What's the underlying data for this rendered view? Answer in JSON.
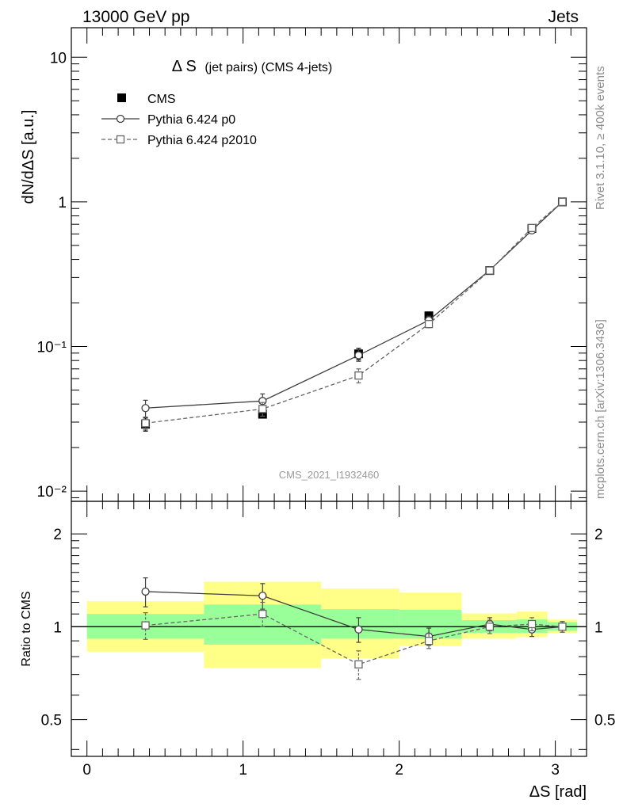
{
  "header": {
    "left": "13000 GeV pp",
    "right": "Jets"
  },
  "side_notes": {
    "rivet": "Rivet 3.1.10, ≥ 400k events",
    "site": "mcplots.cern.ch [arXiv:1306.3436]"
  },
  "watermark": "CMS_2021_I1932460",
  "colors": {
    "data": "#000000",
    "p0": "#3f3f3f",
    "p2010": "#666666",
    "band_outer": "#ffff88",
    "band_inner": "#99ff99"
  },
  "chart_data": [
    {
      "type": "scatter",
      "panel": "main",
      "title_main": "Δ S",
      "title_sub": "(jet pairs) (CMS 4-jets)",
      "xlabel": "ΔS [rad]",
      "ylabel": "dN/dΔS [a.u.]",
      "xlim": [
        -0.1,
        3.2
      ],
      "ylim": [
        0.0085,
        16
      ],
      "yscale": "log",
      "yticks": [
        {
          "value": 0.01,
          "label": "10⁻²"
        },
        {
          "value": 0.1,
          "label": "10⁻¹"
        },
        {
          "value": 1,
          "label": "1"
        },
        {
          "value": 10,
          "label": "10"
        }
      ],
      "legend_position": "top-left",
      "series": [
        {
          "name": "CMS",
          "key": "data",
          "marker": "filled-square",
          "x": [
            0.375,
            1.125,
            1.74,
            2.19,
            2.58,
            2.85,
            3.045
          ],
          "y": [
            0.029,
            0.034,
            0.089,
            0.163,
            0.335,
            0.655,
            1.0
          ],
          "err": [
            0.003,
            0.002,
            0.008,
            0.01,
            0.01,
            0.02,
            0.01
          ]
        },
        {
          "name": "Pythia 6.424 p0",
          "key": "p0",
          "marker": "open-circle",
          "line": "solid",
          "x": [
            0.375,
            1.125,
            1.74,
            2.19,
            2.58,
            2.85,
            3.045
          ],
          "y": [
            0.0375,
            0.042,
            0.087,
            0.152,
            0.337,
            0.635,
            1.0
          ],
          "err": [
            0.005,
            0.005,
            0.008,
            0.01,
            0.012,
            0.02,
            0.01
          ]
        },
        {
          "name": "Pythia 6.424 p2010",
          "key": "p2010",
          "marker": "open-square",
          "line": "dashed",
          "x": [
            0.375,
            1.125,
            1.74,
            2.19,
            2.58,
            2.85,
            3.045
          ],
          "y": [
            0.0295,
            0.037,
            0.063,
            0.143,
            0.335,
            0.66,
            1.0
          ],
          "err": [
            0.003,
            0.004,
            0.007,
            0.008,
            0.012,
            0.025,
            0.01
          ]
        }
      ]
    },
    {
      "type": "scatter",
      "panel": "ratio",
      "xlabel": "ΔS [rad]",
      "ylabel": "Ratio to CMS",
      "xlim": [
        -0.1,
        3.2
      ],
      "ylim": [
        0.38,
        2.55
      ],
      "yscale": "log",
      "xticks": [
        0,
        1,
        2,
        3
      ],
      "yticks": [
        {
          "value": 0.5,
          "label": "0.5"
        },
        {
          "value": 1,
          "label": "1"
        },
        {
          "value": 2,
          "label": "2"
        }
      ],
      "bands": [
        {
          "x0": 0.0,
          "x1": 0.75,
          "outer": [
            0.83,
            1.21
          ],
          "inner": [
            0.915,
            1.1
          ]
        },
        {
          "x0": 0.75,
          "x1": 1.5,
          "outer": [
            0.735,
            1.4
          ],
          "inner": [
            0.875,
            1.18
          ]
        },
        {
          "x0": 1.5,
          "x1": 2.0,
          "outer": [
            0.79,
            1.33
          ],
          "inner": [
            0.915,
            1.14
          ]
        },
        {
          "x0": 2.0,
          "x1": 2.4,
          "outer": [
            0.865,
            1.29
          ],
          "inner": [
            0.915,
            1.135
          ]
        },
        {
          "x0": 2.4,
          "x1": 2.75,
          "outer": [
            0.915,
            1.105
          ],
          "inner": [
            0.955,
            1.05
          ]
        },
        {
          "x0": 2.75,
          "x1": 2.95,
          "outer": [
            0.925,
            1.12
          ],
          "inner": [
            0.955,
            1.055
          ]
        },
        {
          "x0": 2.95,
          "x1": 3.14,
          "outer": [
            0.955,
            1.055
          ],
          "inner": [
            0.97,
            1.035
          ]
        }
      ],
      "series": [
        {
          "name": "Pythia 6.424 p0",
          "key": "p0",
          "marker": "open-circle",
          "line": "solid",
          "x": [
            0.375,
            1.125,
            1.74,
            2.19,
            2.58,
            2.85,
            3.045
          ],
          "y": [
            1.3,
            1.26,
            0.98,
            0.93,
            1.02,
            0.98,
            1.0
          ],
          "err": [
            0.14,
            0.12,
            0.09,
            0.06,
            0.05,
            0.05,
            0.04
          ]
        },
        {
          "name": "Pythia 6.424 p2010",
          "key": "p2010",
          "marker": "open-square",
          "line": "dashed",
          "x": [
            0.375,
            1.125,
            1.74,
            2.19,
            2.58,
            2.85,
            3.045
          ],
          "y": [
            1.01,
            1.1,
            0.755,
            0.9,
            1.0,
            1.02,
            1.0
          ],
          "err": [
            0.1,
            0.1,
            0.08,
            0.05,
            0.05,
            0.05,
            0.04
          ]
        }
      ]
    }
  ]
}
